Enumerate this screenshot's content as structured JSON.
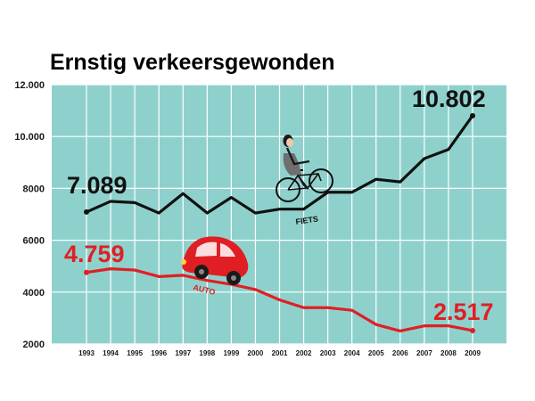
{
  "chart_data": {
    "type": "line",
    "title": "Ernstig verkeersgewonden",
    "x": [
      1993,
      1994,
      1995,
      1996,
      1997,
      1998,
      1999,
      2000,
      2001,
      2002,
      2003,
      2004,
      2005,
      2006,
      2007,
      2008,
      2009
    ],
    "x_tick_labels": [
      "1993",
      "1994",
      "1995",
      "1996",
      "1997",
      "1998",
      "1999",
      "2000",
      "2001",
      "2002",
      "2003",
      "2004",
      "2005",
      "2006",
      "2007",
      "2008",
      "2009"
    ],
    "ylim": [
      2000,
      12000
    ],
    "y_tick_values": [
      2000,
      4000,
      6000,
      8000,
      10000,
      12000
    ],
    "y_tick_labels": [
      "2000",
      "4000",
      "6000",
      "8000",
      "10.000",
      "12.000"
    ],
    "grid": true,
    "series": [
      {
        "name": "FIETS",
        "color": "#111111",
        "values": [
          7089,
          7500,
          7450,
          7050,
          7800,
          7050,
          7650,
          7050,
          7200,
          7200,
          7850,
          7850,
          8350,
          8250,
          9150,
          9500,
          10802
        ],
        "start_label": "7.089",
        "end_label": "10.802"
      },
      {
        "name": "AUTO",
        "color": "#e01f24",
        "values": [
          4759,
          4900,
          4850,
          4600,
          4650,
          4450,
          4300,
          4100,
          3700,
          3400,
          3400,
          3300,
          2750,
          2500,
          2700,
          2700,
          2517
        ],
        "start_label": "4.759",
        "end_label": "2.517"
      }
    ],
    "colors": {
      "plot_background": "#8ed1cc",
      "grid": "#ffffff",
      "title": "#e01f24"
    },
    "icons": {
      "bicycle": "cyclist-on-bicycle-icon",
      "car": "red-car-icon"
    }
  }
}
